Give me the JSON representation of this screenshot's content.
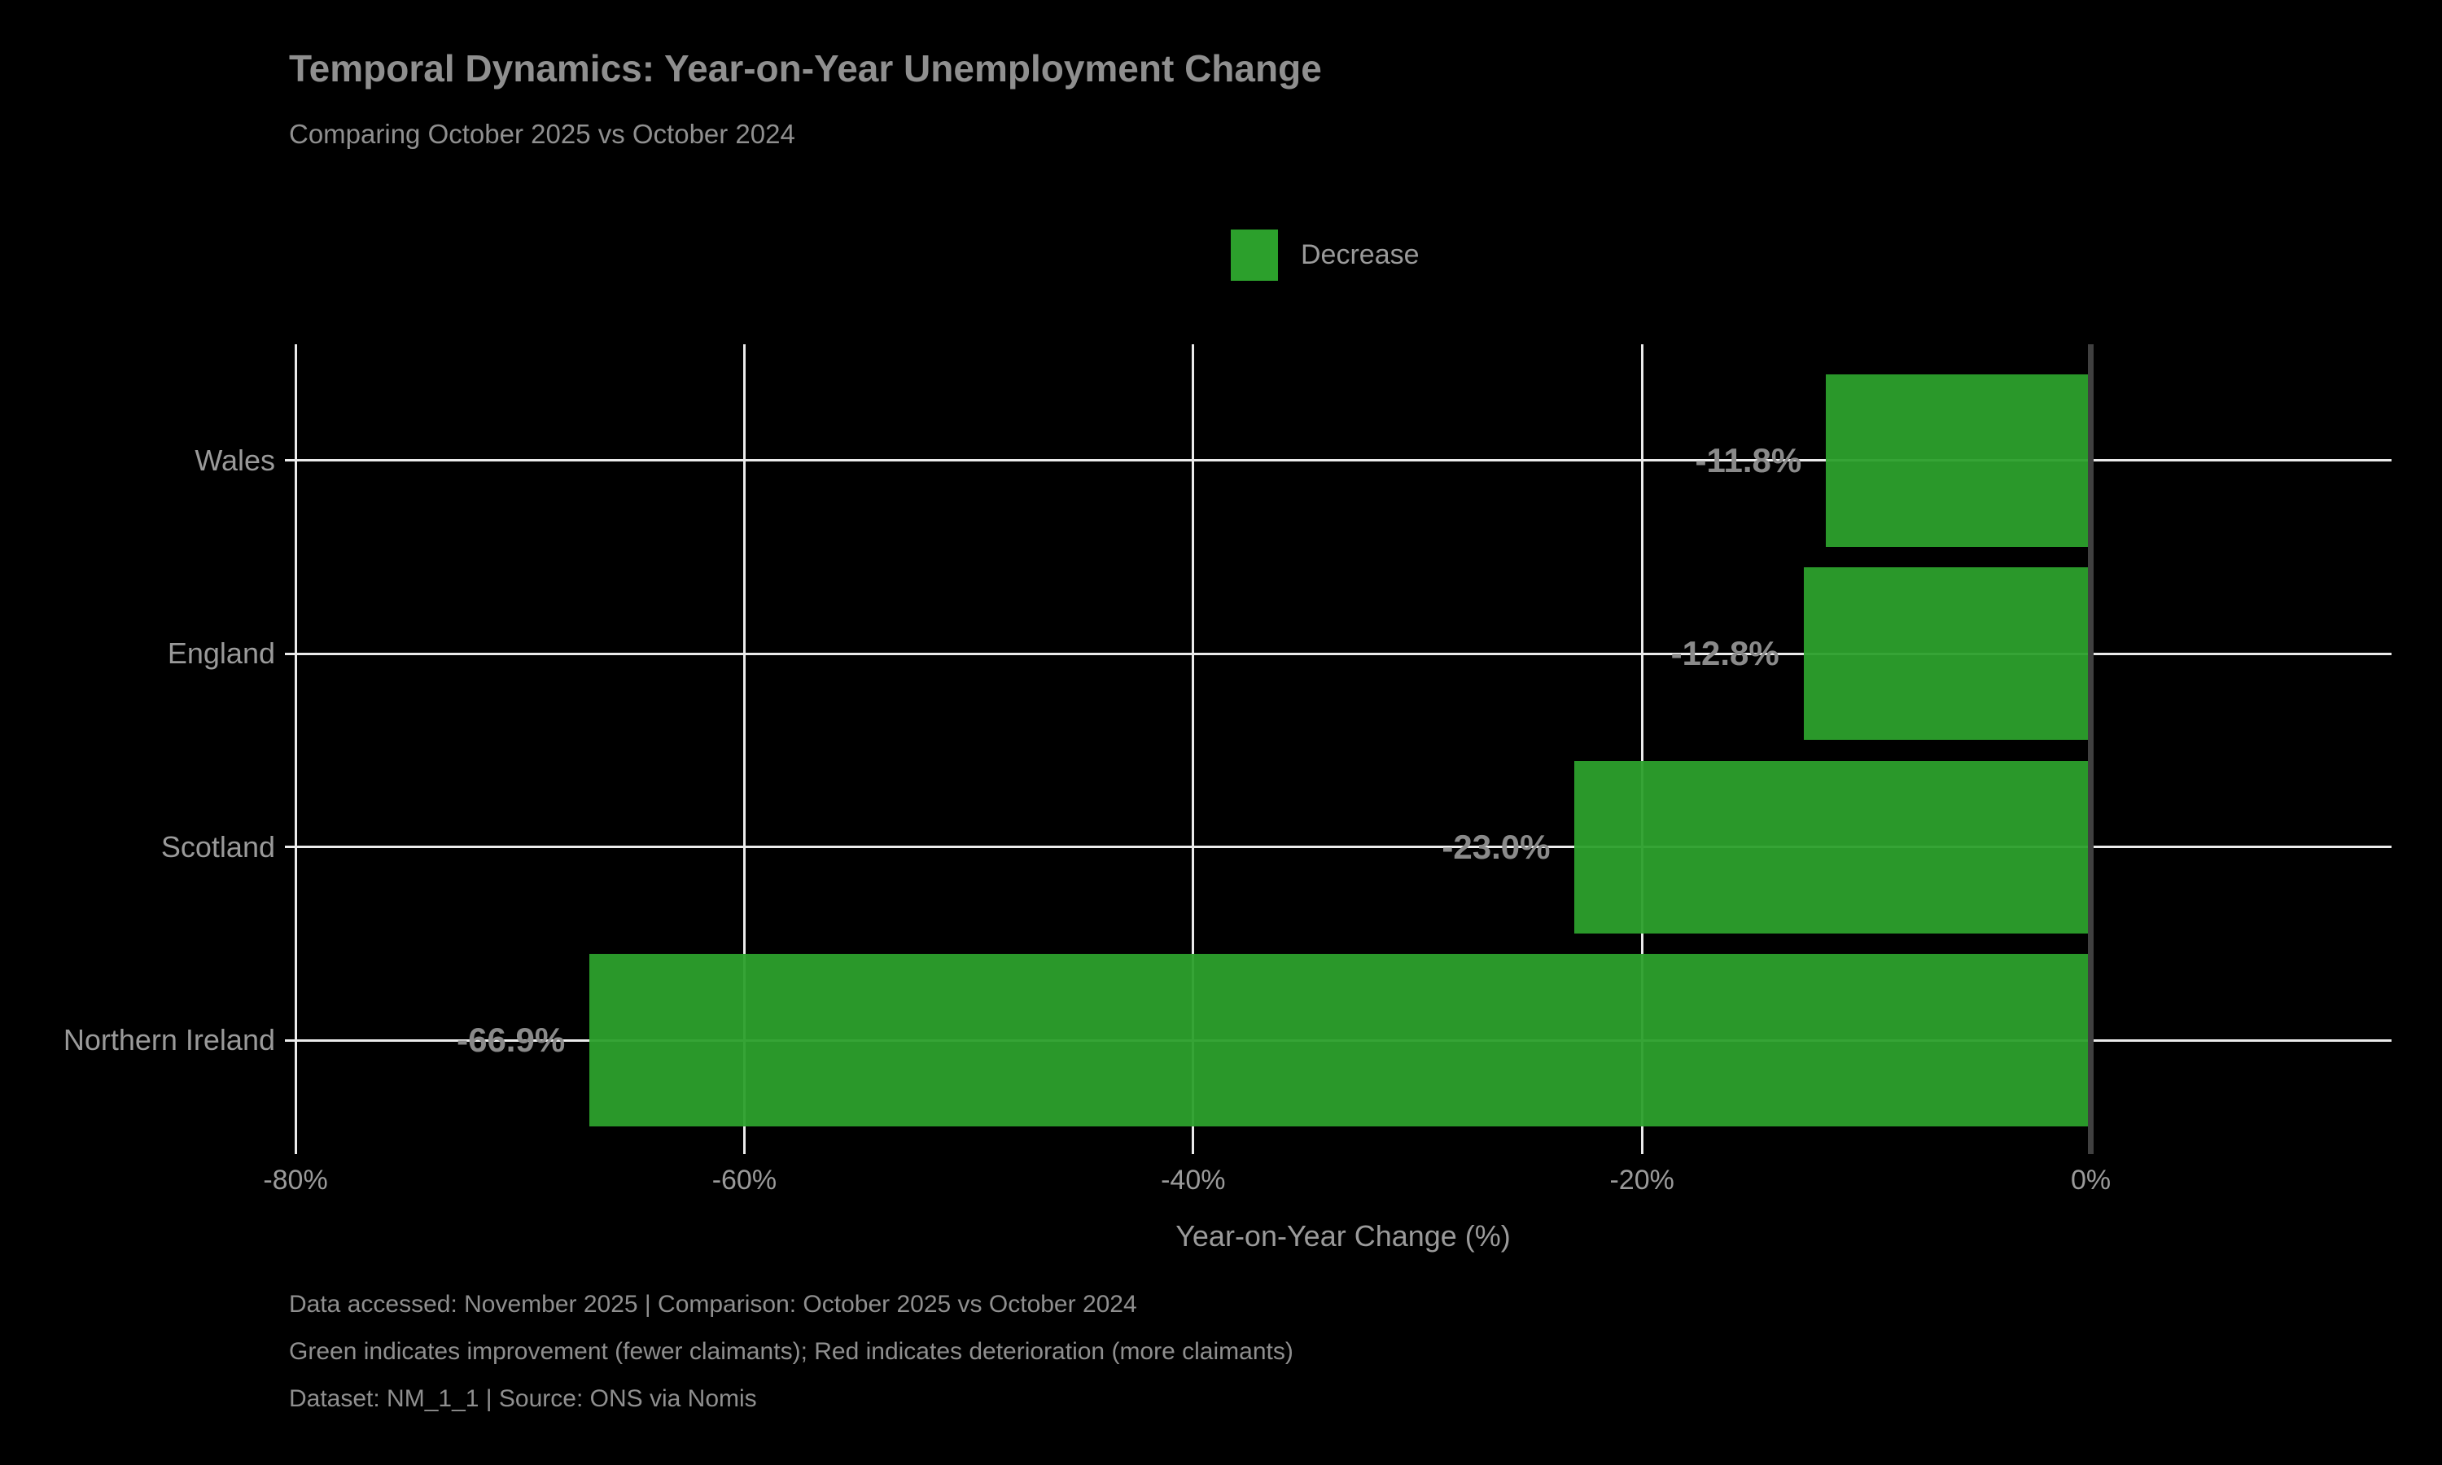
{
  "figure": {
    "title": "Temporal Dynamics: Year-on-Year Unemployment Change",
    "subtitle": "Comparing October 2025 vs October 2024",
    "legend": {
      "label": "Decrease",
      "swatch_color": "#2ca02c"
    },
    "xlabel": "Year-on-Year Change (%)",
    "footer_lines": [
      "Data accessed: November 2025 | Comparison: October 2025 vs October 2024",
      "Green indicates improvement (fewer claimants); Red indicates deterioration (more claimants)",
      "Dataset: NM_1_1 | Source: ONS via Nomis"
    ]
  },
  "chart_data": {
    "type": "bar",
    "orientation": "horizontal",
    "title": "Temporal Dynamics: Year-on-Year Unemployment Change",
    "subtitle": "Comparing October 2025 vs October 2024",
    "categories": [
      "Wales",
      "England",
      "Scotland",
      "Northern Ireland"
    ],
    "values": [
      -11.8,
      -12.8,
      -23.0,
      -66.9
    ],
    "value_labels": [
      "-11.8%",
      "-12.8%",
      "-23.0%",
      "-66.9%"
    ],
    "series_name": "Decrease",
    "bar_color": "#2ca02c",
    "xlabel": "Year-on-Year Change (%)",
    "ylabel": "",
    "xlim": [
      -80,
      13.4
    ],
    "xticks": [
      -80,
      -60,
      -40,
      -20,
      0
    ],
    "xtick_labels": [
      "-80%",
      "-60%",
      "-40%",
      "-20%",
      "0%"
    ],
    "grid": true,
    "gridlines_over_bars": true,
    "legend_position": "upper center",
    "background": "#000000"
  },
  "colors": {
    "background": "#000000",
    "bar_green": "#2ca02c",
    "bar_green_rgba": "rgba(44,160,44,0.95)",
    "grid_line": "#ebebeb",
    "zero_line": "#404040",
    "title_text": "#8f8f8f",
    "axis_text": "#9a9a9a",
    "value_text": "#8a8a8a",
    "footer_text": "#8f8f8f"
  }
}
